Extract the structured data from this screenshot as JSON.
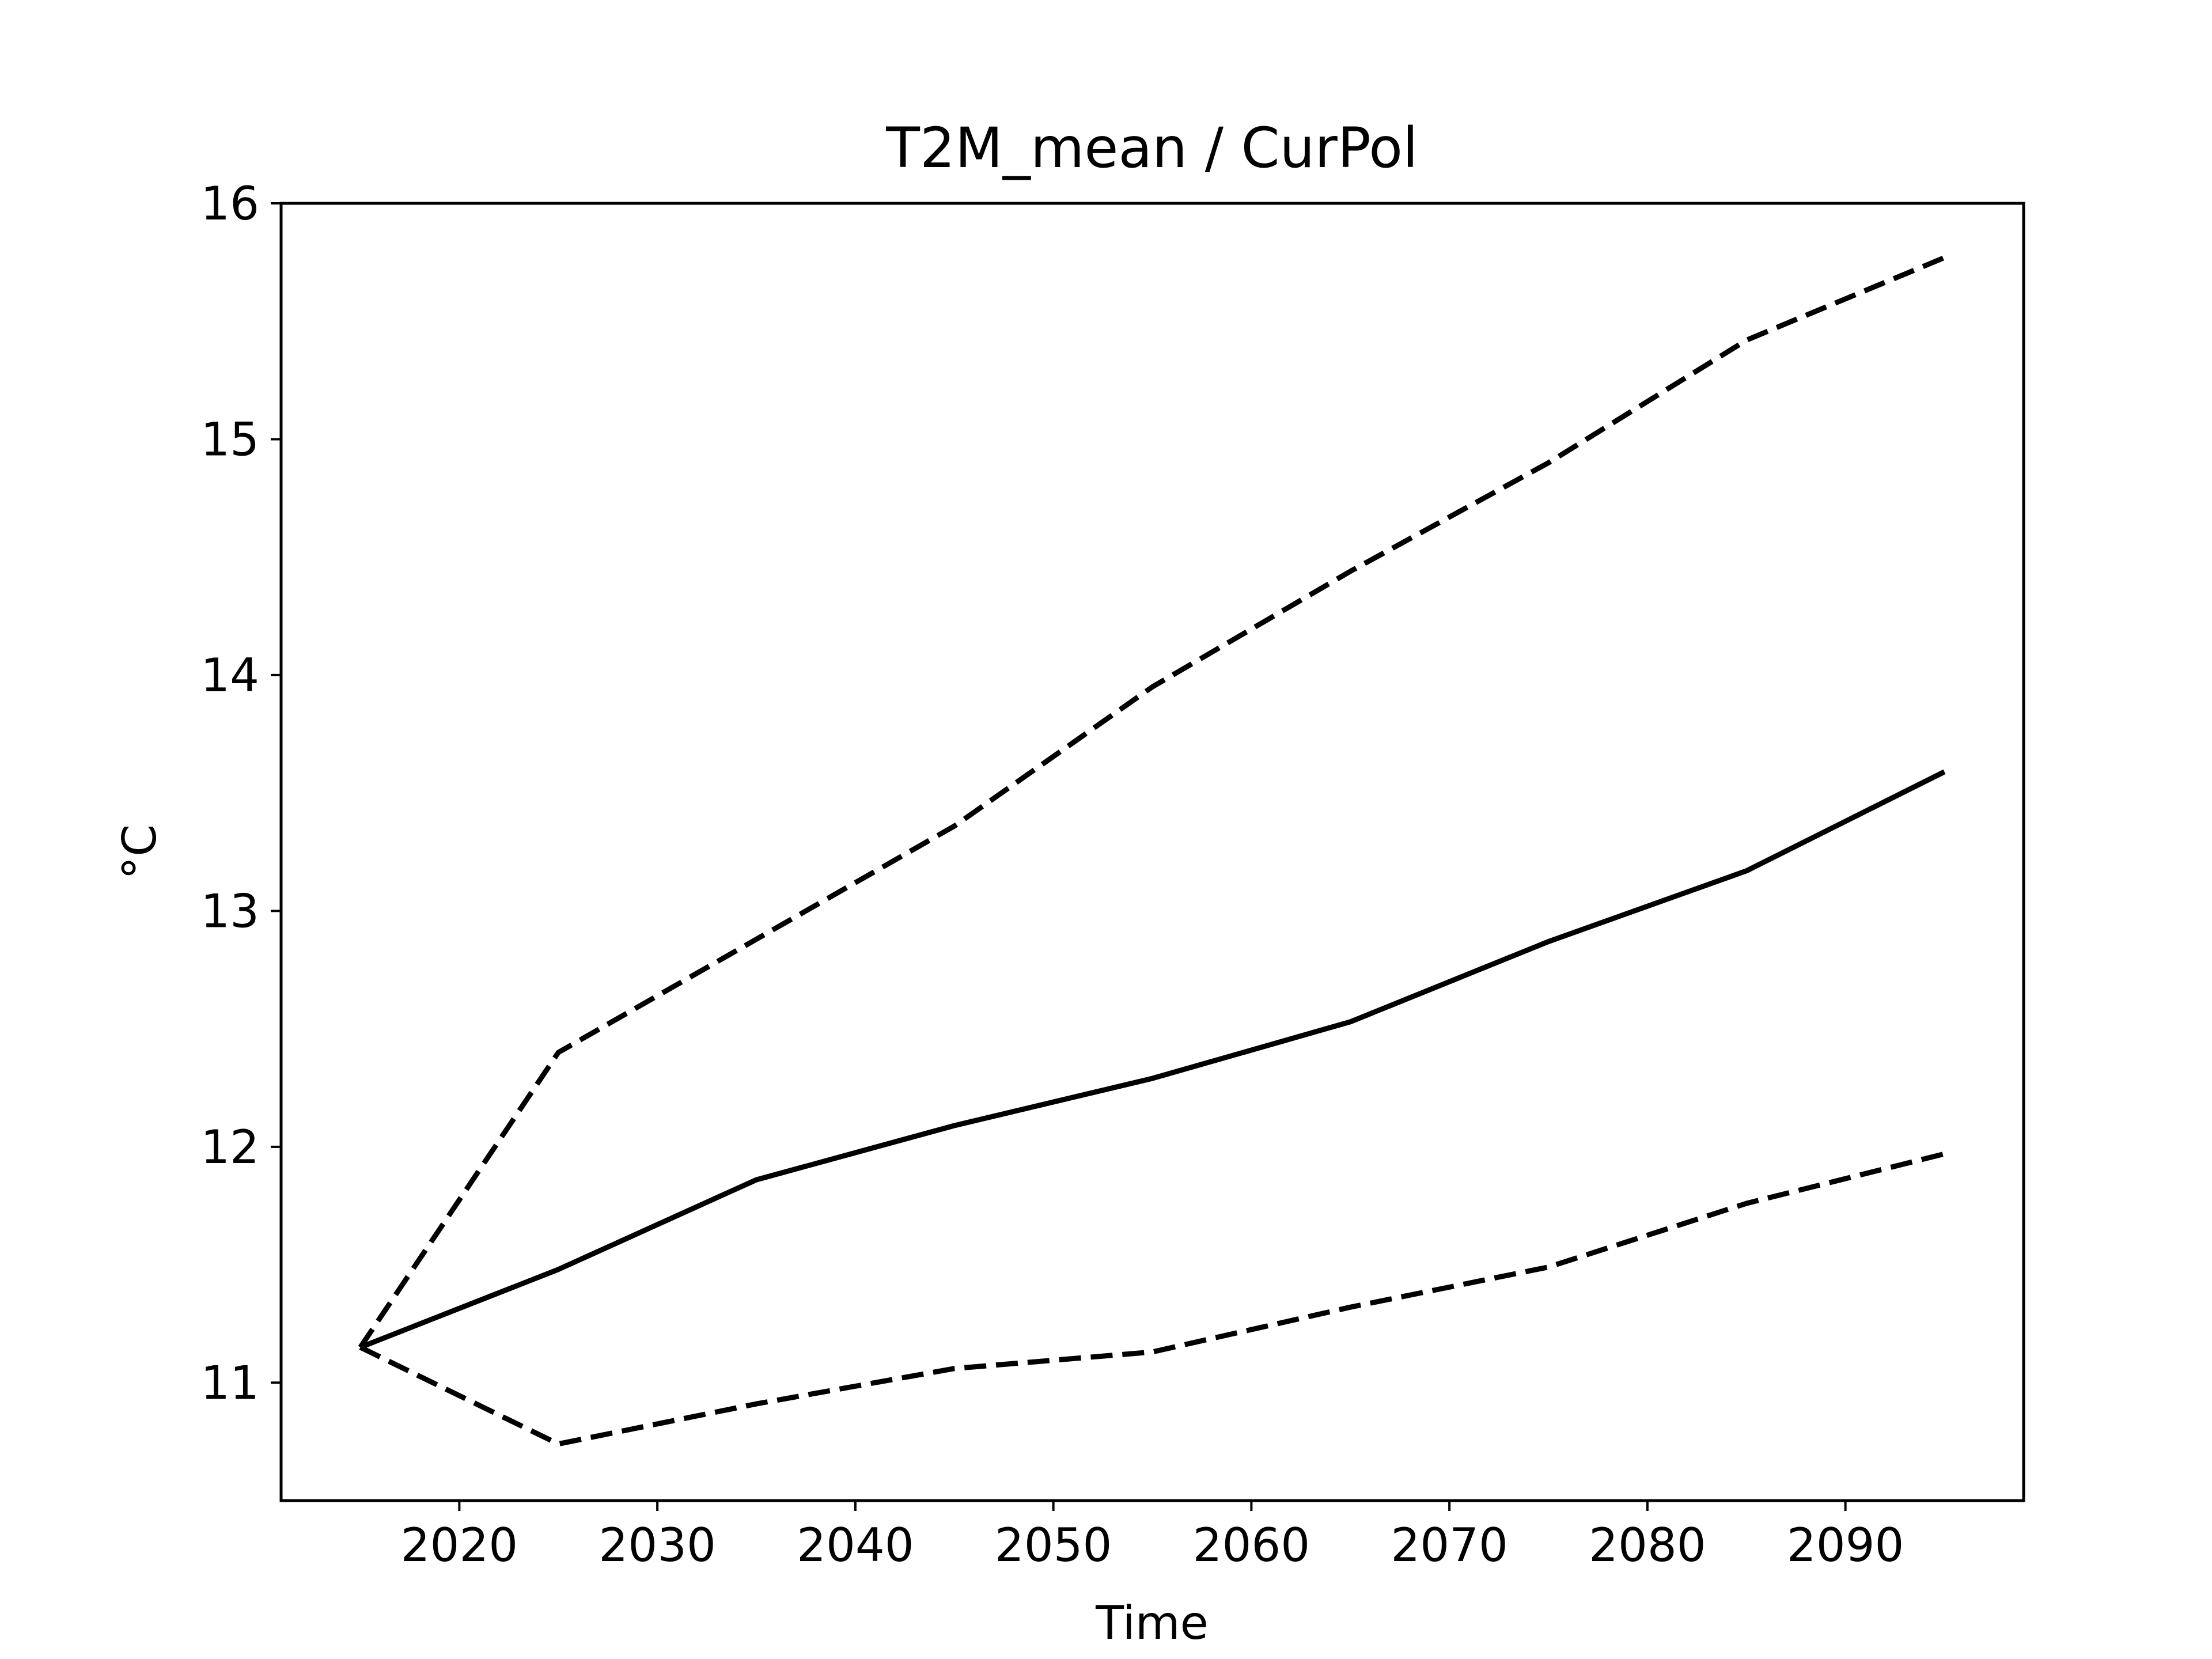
{
  "chart_data": {
    "type": "line",
    "title": "T2M_mean / CurPol",
    "xlabel": "Time",
    "ylabel": "°C",
    "xlim": [
      2011,
      2099
    ],
    "ylim": [
      10.5,
      16.0
    ],
    "xticks": [
      2020,
      2030,
      2040,
      2050,
      2060,
      2070,
      2080,
      2090
    ],
    "yticks": [
      11,
      12,
      13,
      14,
      15,
      16
    ],
    "grid": false,
    "legend": "none",
    "x": [
      2015,
      2025,
      2035,
      2045,
      2055,
      2065,
      2075,
      2085,
      2095
    ],
    "series": [
      {
        "style": "dashed",
        "color": "#000000",
        "values": [
          11.15,
          12.4,
          12.88,
          13.36,
          13.95,
          14.44,
          14.9,
          15.42,
          15.77
        ]
      },
      {
        "style": "solid",
        "color": "#000000",
        "values": [
          11.15,
          11.48,
          11.86,
          12.09,
          12.29,
          12.53,
          12.87,
          13.17,
          13.59
        ]
      },
      {
        "style": "dashed",
        "color": "#000000",
        "values": [
          11.15,
          10.74,
          10.91,
          11.06,
          11.13,
          11.32,
          11.49,
          11.76,
          11.97
        ]
      }
    ]
  }
}
